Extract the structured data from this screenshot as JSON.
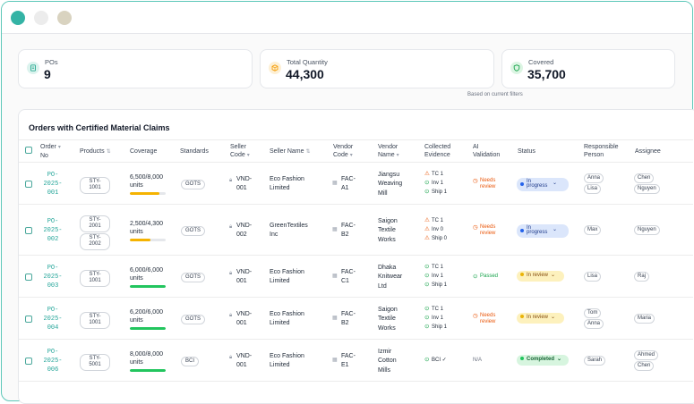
{
  "stats": [
    {
      "label": "POs",
      "value": "9",
      "icon": "document-icon",
      "color": "#22a88e"
    },
    {
      "label": "Total Quantity",
      "value": "44,300",
      "icon": "box-icon",
      "color": "#f59e0b"
    },
    {
      "label": "Covered",
      "value": "35,700",
      "icon": "shield-icon",
      "color": "#16a34a"
    }
  ],
  "filter_note": "Based on current filters",
  "panel_title": "Orders with Certified Material Claims",
  "headers": {
    "order_no": [
      "Order",
      "No"
    ],
    "products": "Products",
    "coverage": "Coverage",
    "standards": "Standards",
    "seller_code": [
      "Seller",
      "Code"
    ],
    "seller_name": "Seller Name",
    "vendor_code": [
      "Vendor",
      "Code"
    ],
    "vendor_name": [
      "Vendor",
      "Name"
    ],
    "evidence": [
      "Collected",
      "Evidence"
    ],
    "ai": [
      "AI",
      "Validation"
    ],
    "status": "Status",
    "responsible": [
      "Responsible",
      "Person"
    ],
    "assignee": "Assignee"
  },
  "rows": [
    {
      "po": [
        "PO-",
        "2025-",
        "001"
      ],
      "products": [
        "STY-1001"
      ],
      "coverage": [
        "6,500/8,000",
        "units"
      ],
      "progress": 0.8125,
      "bar_color": "#f5b301",
      "standard": "GOTS",
      "seller_code": [
        "VND-",
        "001"
      ],
      "seller_name": [
        "Eco Fashion",
        "Limited"
      ],
      "vendor_code": [
        "FAC-",
        "A1"
      ],
      "vendor_name": [
        "Jiangsu",
        "Weaving",
        "Mill"
      ],
      "evidence": [
        {
          "label": "TC 1",
          "state": "warn"
        },
        {
          "label": "Inv 1",
          "state": "ok"
        },
        {
          "label": "Ship 1",
          "state": "ok"
        }
      ],
      "ai": {
        "text": "Needs review",
        "state": "warn"
      },
      "status": {
        "text": "In progress",
        "kind": "prog"
      },
      "responsible": [
        "Anna",
        "Lisa"
      ],
      "assignee": [
        "Chen",
        "Nguyen"
      ]
    },
    {
      "po": [
        "PO-",
        "2025-",
        "002"
      ],
      "products": [
        "STY-2001",
        "STY-2002"
      ],
      "coverage": [
        "2,500/4,300",
        "units"
      ],
      "progress": 0.58,
      "bar_color": "#f5b301",
      "standard": "GOTS",
      "seller_code": [
        "VND-",
        "002"
      ],
      "seller_name": [
        "GreenTextiles",
        "Inc"
      ],
      "vendor_code": [
        "FAC-",
        "B2"
      ],
      "vendor_name": [
        "Saigon",
        "Textile",
        "Works"
      ],
      "evidence": [
        {
          "label": "TC 1",
          "state": "warn"
        },
        {
          "label": "Inv 0",
          "state": "warn"
        },
        {
          "label": "Ship 0",
          "state": "warn"
        }
      ],
      "ai": {
        "text": "Needs review",
        "state": "warn"
      },
      "status": {
        "text": "In progress",
        "kind": "prog"
      },
      "responsible": [
        "Max"
      ],
      "assignee": [
        "Nguyen"
      ]
    },
    {
      "po": [
        "PO-",
        "2025-",
        "003"
      ],
      "products": [
        "STY-1001"
      ],
      "coverage": [
        "6,000/6,000",
        "units"
      ],
      "progress": 1.0,
      "bar_color": "#22c55e",
      "standard": "GOTS",
      "seller_code": [
        "VND-",
        "001"
      ],
      "seller_name": [
        "Eco Fashion",
        "Limited"
      ],
      "vendor_code": [
        "FAC-",
        "C1"
      ],
      "vendor_name": [
        "Dhaka",
        "Knitwear",
        "Ltd"
      ],
      "evidence": [
        {
          "label": "TC 1",
          "state": "ok"
        },
        {
          "label": "Inv 1",
          "state": "ok"
        },
        {
          "label": "Ship 1",
          "state": "ok"
        }
      ],
      "ai": {
        "text": "Passed",
        "state": "ok"
      },
      "status": {
        "text": "In review",
        "kind": "rev"
      },
      "responsible": [
        "Lisa"
      ],
      "assignee": [
        "Raj"
      ]
    },
    {
      "po": [
        "PO-",
        "2025-",
        "004"
      ],
      "products": [
        "STY-1001"
      ],
      "coverage": [
        "6,200/6,000",
        "units"
      ],
      "progress": 1.0,
      "bar_color": "#22c55e",
      "standard": "GOTS",
      "seller_code": [
        "VND-",
        "001"
      ],
      "seller_name": [
        "Eco Fashion",
        "Limited"
      ],
      "vendor_code": [
        "FAC-",
        "B2"
      ],
      "vendor_name": [
        "Saigon",
        "Textile",
        "Works"
      ],
      "evidence": [
        {
          "label": "TC 1",
          "state": "ok"
        },
        {
          "label": "Inv 1",
          "state": "ok"
        },
        {
          "label": "Ship 1",
          "state": "ok"
        }
      ],
      "ai": {
        "text": "Needs review",
        "state": "warn"
      },
      "status": {
        "text": "In review",
        "kind": "rev"
      },
      "responsible": [
        "Tom",
        "Anna"
      ],
      "assignee": [
        "Maria"
      ]
    },
    {
      "po": [
        "PO-",
        "2025-",
        "006"
      ],
      "products": [
        "STY-5001"
      ],
      "coverage": [
        "8,000/8,000",
        "units"
      ],
      "progress": 1.0,
      "bar_color": "#22c55e",
      "standard": "BCI",
      "seller_code": [
        "VND-",
        "001"
      ],
      "seller_name": [
        "Eco Fashion",
        "Limited"
      ],
      "vendor_code": [
        "FAC-",
        "E1"
      ],
      "vendor_name": [
        "Izmir",
        "Cotton",
        "Mills"
      ],
      "evidence": [
        {
          "label": "BCI ✓",
          "state": "ok"
        }
      ],
      "ai": {
        "text": "N/A",
        "state": "na"
      },
      "status": {
        "text": "Completed",
        "kind": "done"
      },
      "responsible": [
        "Sarah"
      ],
      "assignee": [
        "Ahmed",
        "Chen"
      ]
    }
  ]
}
